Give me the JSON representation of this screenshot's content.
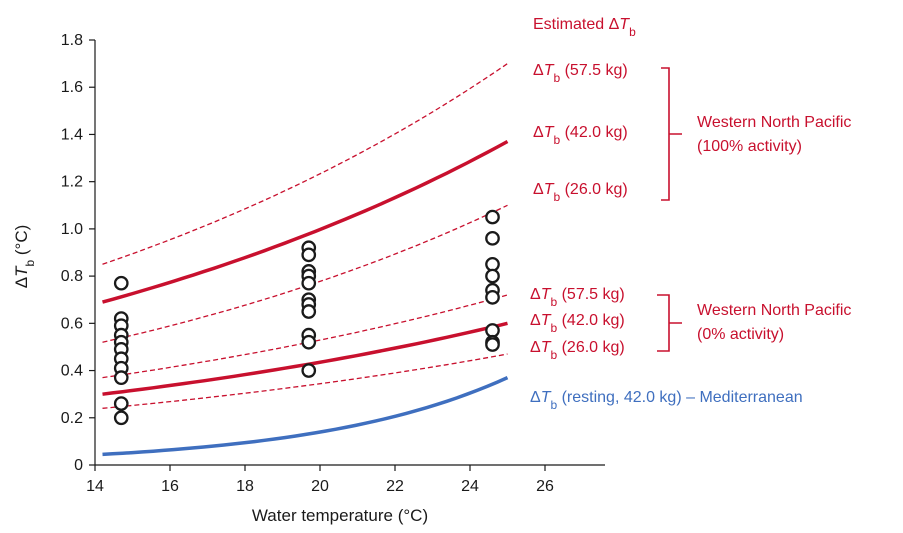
{
  "chart_data": {
    "type": "line",
    "xlabel": "Water temperature (°C)",
    "ylabel": "ΔT_b (°C)",
    "xlim": [
      14,
      27.6
    ],
    "ylim": [
      0,
      1.8
    ],
    "x_ticks": [
      "14",
      "16",
      "18",
      "20",
      "22",
      "24",
      "26"
    ],
    "y_ticks": [
      "0",
      "0.2",
      "0.4",
      "0.6",
      "0.8",
      "1.0",
      "1.2",
      "1.4",
      "1.6",
      "1.8"
    ],
    "colors": {
      "red": "#c8102e",
      "blue": "#3f6fbf",
      "points": "#1a1a1a"
    },
    "header": {
      "pre": "Estimated Δ",
      "var": "T",
      "sub": "b"
    },
    "series": [
      {
        "group": "100",
        "mass": "57.5 kg",
        "style": "dashed",
        "color": "#c8102e",
        "x": [
          14.2,
          25
        ],
        "y": [
          0.85,
          1.7
        ]
      },
      {
        "group": "100",
        "mass": "42.0 kg",
        "style": "solid",
        "color": "#c8102e",
        "x": [
          14.2,
          25
        ],
        "y": [
          0.69,
          1.37
        ]
      },
      {
        "group": "100",
        "mass": "26.0 kg",
        "style": "dashed",
        "color": "#c8102e",
        "x": [
          14.2,
          25
        ],
        "y": [
          0.52,
          1.1
        ]
      },
      {
        "group": "0",
        "mass": "57.5 kg",
        "style": "dashed",
        "color": "#c8102e",
        "x": [
          14.2,
          25
        ],
        "y": [
          0.37,
          0.72
        ]
      },
      {
        "group": "0",
        "mass": "42.0 kg",
        "style": "solid",
        "color": "#c8102e",
        "x": [
          14.2,
          25
        ],
        "y": [
          0.3,
          0.6
        ]
      },
      {
        "group": "0",
        "mass": "26.0 kg",
        "style": "dashed",
        "color": "#c8102e",
        "x": [
          14.2,
          25
        ],
        "y": [
          0.24,
          0.47
        ]
      },
      {
        "group": "rest",
        "mass": "42.0 kg",
        "style": "solid",
        "color": "#3f6fbf",
        "x": [
          14.2,
          25
        ],
        "y": [
          0.045,
          0.37
        ]
      }
    ],
    "points": [
      {
        "x": 14.7,
        "y": [
          0.77,
          0.62,
          0.59,
          0.55,
          0.52,
          0.49,
          0.45,
          0.41,
          0.37,
          0.26,
          0.2
        ]
      },
      {
        "x": 19.7,
        "y": [
          0.92,
          0.89,
          0.82,
          0.8,
          0.77,
          0.7,
          0.68,
          0.65,
          0.55,
          0.52,
          0.4
        ]
      },
      {
        "x": 24.6,
        "y": [
          1.05,
          0.96,
          0.85,
          0.8,
          0.74,
          0.71,
          0.57,
          0.52,
          0.51
        ]
      }
    ],
    "annotations": {
      "group_100_line1": "Western North Pacific",
      "group_100_line2": "(100% activity)",
      "group_0_line1": "Western North Pacific",
      "group_0_line2": "(0% activity)",
      "rest_label": "(resting, 42.0 kg) – Mediterranean",
      "delta": "Δ",
      "var": "T",
      "sub": "b"
    }
  }
}
